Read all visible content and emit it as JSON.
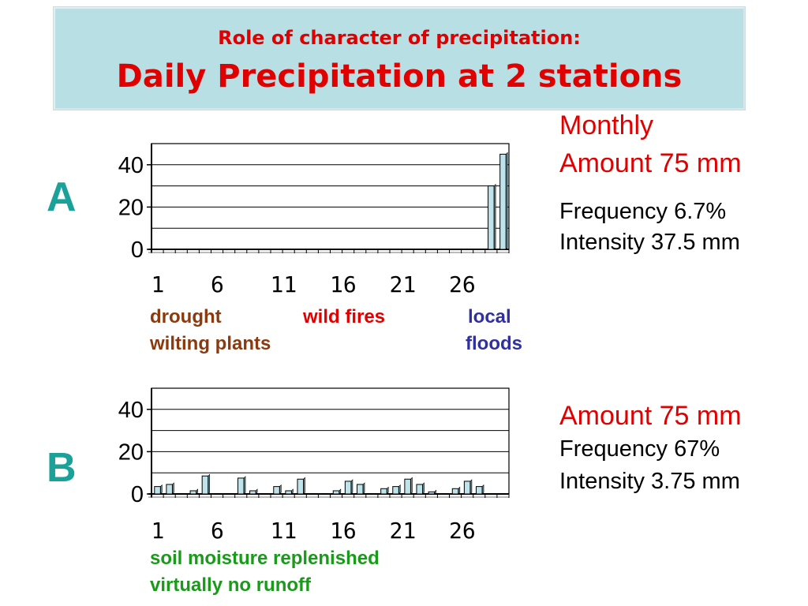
{
  "title": {
    "subtitle": "Role of character of precipitation:",
    "main": "Daily Precipitation at 2 stations"
  },
  "station_a": {
    "letter": "A",
    "summary": {
      "line1": "Monthly",
      "line2": "Amount 75 mm",
      "frequency": "Frequency   6.7%",
      "intensity": "Intensity   37.5 mm"
    },
    "notes": {
      "drought": "drought",
      "wilting": "wilting plants",
      "wildfires": "wild fires",
      "local": "local",
      "floods": "floods"
    }
  },
  "station_b": {
    "letter": "B",
    "summary": {
      "amount": "Amount 75 mm",
      "frequency": "Frequency   67%",
      "intensity": "Intensity   3.75 mm"
    },
    "notes": {
      "soil": "soil moisture replenished",
      "runoff": "virtually no runoff"
    }
  },
  "colors": {
    "title_bg": "#b8dfe4",
    "title_text": "#e00000",
    "station_letter": "#1aa19a",
    "bar_fill": "#bfe3ea",
    "note_brown": "#8b3a0f",
    "note_red": "#e00000",
    "note_blue": "#3030a0",
    "note_green": "#1a9a1a"
  },
  "chart_data": [
    {
      "type": "bar",
      "station": "A",
      "xlabel": "",
      "ylabel": "",
      "ylim": [
        0,
        40
      ],
      "yticks": [
        0,
        20,
        40
      ],
      "xticks": [
        "1",
        "6",
        "11",
        "16",
        "21",
        "26"
      ],
      "days": [
        1,
        2,
        3,
        4,
        5,
        6,
        7,
        8,
        9,
        10,
        11,
        12,
        13,
        14,
        15,
        16,
        17,
        18,
        19,
        20,
        21,
        22,
        23,
        24,
        25,
        26,
        27,
        28,
        29,
        30
      ],
      "values": [
        0,
        0,
        0,
        0,
        0,
        0,
        0,
        0,
        0,
        0,
        0,
        0,
        0,
        0,
        0,
        0,
        0,
        0,
        0,
        0,
        0,
        0,
        0,
        0,
        0,
        0,
        0,
        0,
        30,
        45
      ],
      "grid": true
    },
    {
      "type": "bar",
      "station": "B",
      "xlabel": "",
      "ylabel": "",
      "ylim": [
        0,
        40
      ],
      "yticks": [
        0,
        20,
        40
      ],
      "xticks": [
        "1",
        "6",
        "11",
        "16",
        "21",
        "26"
      ],
      "days": [
        1,
        2,
        3,
        4,
        5,
        6,
        7,
        8,
        9,
        10,
        11,
        12,
        13,
        14,
        15,
        16,
        17,
        18,
        19,
        20,
        21,
        22,
        23,
        24,
        25,
        26,
        27,
        28,
        29,
        30
      ],
      "values": [
        3.5,
        4.5,
        0,
        1.5,
        8.5,
        0,
        0,
        7.5,
        1.5,
        0,
        3.5,
        1.5,
        7,
        0,
        0,
        1.5,
        6,
        4.5,
        0,
        2.5,
        3.5,
        7,
        4.5,
        1,
        0,
        2.5,
        6,
        3.5,
        0,
        0
      ],
      "grid": true
    }
  ]
}
